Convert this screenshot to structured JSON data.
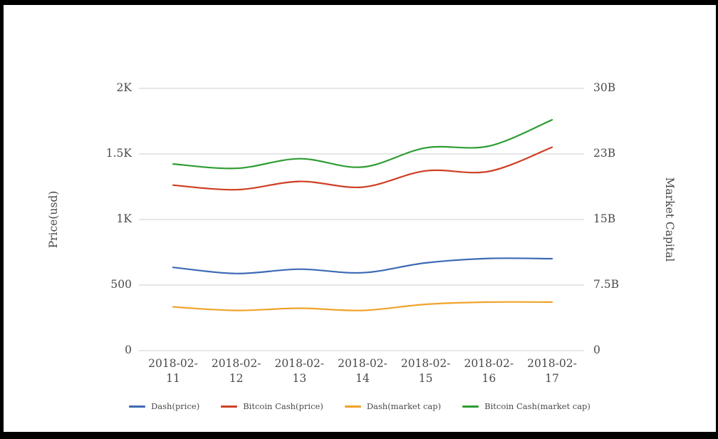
{
  "chart_data": {
    "type": "line",
    "smooth": true,
    "grid": true,
    "legend_position": "bottom",
    "x": [
      "2018-02-11",
      "2018-02-12",
      "2018-02-13",
      "2018-02-14",
      "2018-02-15",
      "2018-02-16",
      "2018-02-17"
    ],
    "left_axis": {
      "label": "Price(usd)",
      "ticks": [
        "0",
        "500",
        "1K",
        "1.5K",
        "2K"
      ],
      "range": [
        0,
        2000
      ],
      "unit": "USD"
    },
    "right_axis": {
      "label": "Market Capital",
      "ticks": [
        "0",
        "7.5B",
        "15B",
        "23B",
        "30B"
      ],
      "range": [
        0,
        30
      ],
      "unit": "USD billions"
    },
    "series": [
      {
        "name": "Dash(price)",
        "axis": "left",
        "color": "#3c6ab5",
        "values": [
          635,
          588,
          621,
          594,
          669,
          703,
          701
        ]
      },
      {
        "name": "Bitcoin Cash(price)",
        "axis": "left",
        "color": "#cf3f25",
        "values": [
          1262,
          1227,
          1290,
          1247,
          1371,
          1367,
          1551
        ]
      },
      {
        "name": "Dash(market cap)",
        "axis": "right",
        "color": "#f0a32a",
        "values": [
          5.0,
          4.6,
          4.85,
          4.6,
          5.3,
          5.55,
          5.55
        ]
      },
      {
        "name": "Bitcoin Cash(market cap)",
        "axis": "right",
        "color": "#2e9d32",
        "values": [
          21.35,
          20.85,
          21.95,
          21.0,
          23.2,
          23.4,
          26.4
        ]
      }
    ]
  },
  "colors": {
    "text": "#4a4a4a",
    "grid": "#cccccc",
    "background": "#ffffff",
    "frame": "#000000"
  }
}
